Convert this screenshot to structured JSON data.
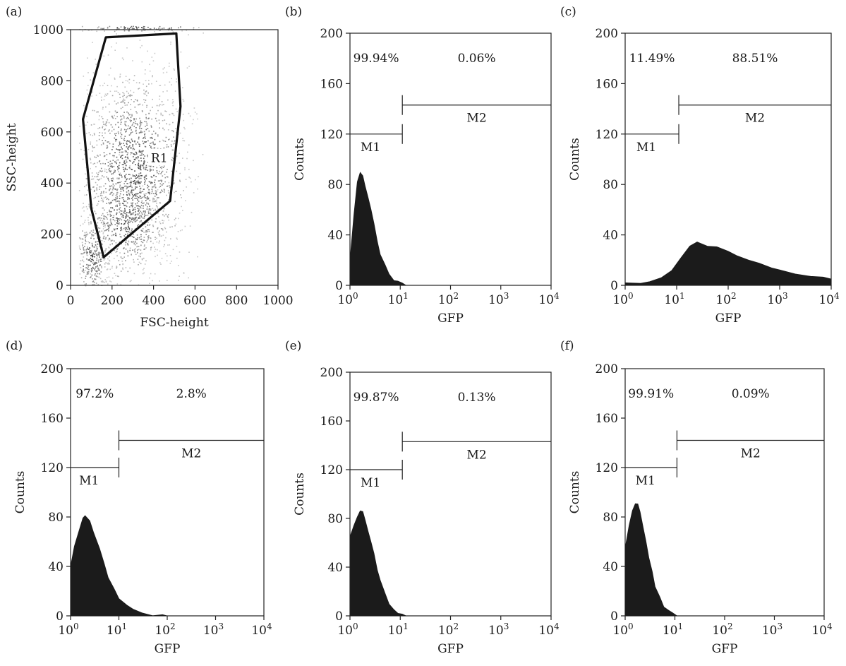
{
  "chart_data": [
    {
      "panel_label": "(a)",
      "type": "scatter",
      "xlabel": "FSC-height",
      "ylabel": "SSC-height",
      "xlim": [
        0,
        1000
      ],
      "ylim": [
        0,
        1000
      ],
      "x_ticks": [
        "0",
        "200",
        "400",
        "600",
        "800",
        "1000"
      ],
      "y_ticks": [
        "0",
        "200",
        "400",
        "600",
        "800",
        "1000"
      ],
      "gate_label": "R1",
      "gate_polygon": [
        [
          60,
          650
        ],
        [
          170,
          970
        ],
        [
          510,
          985
        ],
        [
          530,
          700
        ],
        [
          480,
          330
        ],
        [
          160,
          110
        ],
        [
          100,
          300
        ],
        [
          60,
          650
        ]
      ],
      "density_regions": [
        {
          "cx": 300,
          "cy": 450,
          "sx": 130,
          "sy": 200,
          "weight": 0.62
        },
        {
          "cx": 260,
          "cy": 250,
          "sx": 90,
          "sy": 110,
          "weight": 0.2
        },
        {
          "cx": 100,
          "cy": 110,
          "sx": 40,
          "sy": 80,
          "weight": 0.12
        },
        {
          "cx": 330,
          "cy": 1010,
          "sx": 160,
          "sy": 10,
          "weight": 0.06
        }
      ]
    },
    {
      "panel_label": "(b)",
      "type": "area",
      "xscale": "log",
      "xlabel": "GFP",
      "ylabel": "Counts",
      "xlim": [
        1,
        10000
      ],
      "ylim": [
        0,
        200
      ],
      "y_ticks": [
        "0",
        "40",
        "80",
        "120",
        "160",
        "200"
      ],
      "x_tick_base": [
        "10",
        "10",
        "10",
        "10",
        "10"
      ],
      "x_tick_exp": [
        "0",
        "1",
        "2",
        "3",
        "4"
      ],
      "markers": [
        {
          "name": "M1",
          "from": 1,
          "to": 11,
          "y": 120
        },
        {
          "name": "M2",
          "from": 11,
          "to": 10000,
          "y": 143
        }
      ],
      "percentages": [
        "99.94%",
        "0.06%"
      ],
      "histogram": {
        "x": [
          1,
          1.2,
          1.4,
          1.6,
          1.8,
          2,
          2.3,
          2.6,
          3,
          3.5,
          4,
          5,
          6,
          7.5,
          9,
          11,
          13
        ],
        "y": [
          20,
          55,
          82,
          90,
          88,
          80,
          70,
          60,
          48,
          35,
          25,
          15,
          8,
          4,
          2,
          1,
          0
        ]
      }
    },
    {
      "panel_label": "(c)",
      "type": "area",
      "xscale": "log",
      "xlabel": "GFP",
      "ylabel": "Counts",
      "xlim": [
        1,
        10000
      ],
      "ylim": [
        0,
        200
      ],
      "y_ticks": [
        "0",
        "40",
        "80",
        "120",
        "160",
        "200"
      ],
      "x_tick_base": [
        "10",
        "10",
        "10",
        "10",
        "10"
      ],
      "x_tick_exp": [
        "0",
        "1",
        "2",
        "3",
        "4"
      ],
      "markers": [
        {
          "name": "M1",
          "from": 1,
          "to": 11,
          "y": 120
        },
        {
          "name": "M2",
          "from": 11,
          "to": 10000,
          "y": 143
        }
      ],
      "percentages": [
        "11.49%",
        "88.51%"
      ],
      "histogram": {
        "x": [
          1,
          2,
          3,
          5,
          8,
          12,
          18,
          25,
          40,
          60,
          100,
          150,
          250,
          400,
          700,
          1000,
          2000,
          4000,
          7000,
          10000
        ],
        "y": [
          2,
          3,
          4,
          6,
          12,
          22,
          30,
          33,
          32,
          30,
          28,
          24,
          20,
          17,
          13,
          11,
          8,
          7,
          6,
          5
        ]
      }
    },
    {
      "panel_label": "(d)",
      "type": "area",
      "xscale": "log",
      "xlabel": "GFP",
      "ylabel": "Counts",
      "xlim": [
        1,
        10000
      ],
      "ylim": [
        0,
        200
      ],
      "y_ticks": [
        "0",
        "40",
        "80",
        "120",
        "160",
        "200"
      ],
      "x_tick_base": [
        "10",
        "10",
        "10",
        "10",
        "10"
      ],
      "x_tick_exp": [
        "0",
        "1",
        "2",
        "3",
        "4"
      ],
      "markers": [
        {
          "name": "M1",
          "from": 1,
          "to": 10,
          "y": 120
        },
        {
          "name": "M2",
          "from": 10,
          "to": 10000,
          "y": 142
        }
      ],
      "percentages": [
        "97.2%",
        "2.8%"
      ],
      "histogram": {
        "x": [
          1,
          1.2,
          1.5,
          1.8,
          2,
          2.5,
          3,
          4,
          5,
          6,
          8,
          10,
          15,
          20,
          30,
          50,
          80,
          100
        ],
        "y": [
          40,
          55,
          70,
          78,
          80,
          76,
          68,
          55,
          42,
          32,
          22,
          15,
          8,
          5,
          3,
          1,
          0,
          0
        ]
      }
    },
    {
      "panel_label": "(e)",
      "type": "area",
      "xscale": "log",
      "xlabel": "GFP",
      "ylabel": "Counts",
      "xlim": [
        1,
        10000
      ],
      "ylim": [
        0,
        200
      ],
      "y_ticks": [
        "0",
        "40",
        "80",
        "120",
        "160",
        "200"
      ],
      "x_tick_base": [
        "10",
        "10",
        "10",
        "10",
        "10"
      ],
      "x_tick_exp": [
        "0",
        "1",
        "2",
        "3",
        "4"
      ],
      "markers": [
        {
          "name": "M1",
          "from": 1,
          "to": 11,
          "y": 120
        },
        {
          "name": "M2",
          "from": 11,
          "to": 10000,
          "y": 143
        }
      ],
      "percentages": [
        "99.87%",
        "0.13%"
      ],
      "histogram": {
        "x": [
          1,
          1.2,
          1.4,
          1.6,
          1.8,
          2,
          2.3,
          2.6,
          3,
          3.5,
          4,
          5,
          6,
          7.5,
          9,
          11,
          13
        ],
        "y": [
          65,
          75,
          82,
          86,
          85,
          80,
          70,
          60,
          50,
          38,
          28,
          17,
          10,
          5,
          3,
          1,
          0
        ]
      }
    },
    {
      "panel_label": "(f)",
      "type": "area",
      "xscale": "log",
      "xlabel": "GFP",
      "ylabel": "Counts",
      "xlim": [
        1,
        10000
      ],
      "ylim": [
        0,
        200
      ],
      "y_ticks": [
        "0",
        "40",
        "80",
        "120",
        "160",
        "200"
      ],
      "x_tick_base": [
        "10",
        "10",
        "10",
        "10",
        "10"
      ],
      "x_tick_exp": [
        "0",
        "1",
        "2",
        "3",
        "4"
      ],
      "markers": [
        {
          "name": "M1",
          "from": 1,
          "to": 11,
          "y": 120
        },
        {
          "name": "M2",
          "from": 11,
          "to": 10000,
          "y": 142
        }
      ],
      "percentages": [
        "99.91%",
        "0.09%"
      ],
      "histogram": {
        "x": [
          1,
          1.2,
          1.4,
          1.6,
          1.8,
          2,
          2.3,
          2.6,
          3,
          3.5,
          4,
          5,
          6,
          7.5,
          9,
          11,
          13
        ],
        "y": [
          55,
          72,
          85,
          92,
          90,
          84,
          72,
          60,
          48,
          35,
          25,
          14,
          8,
          4,
          2,
          1,
          0
        ]
      }
    }
  ]
}
